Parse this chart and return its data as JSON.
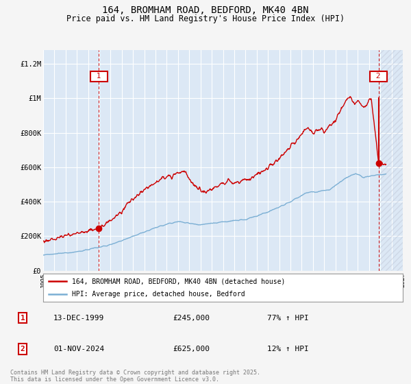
{
  "title_line1": "164, BROMHAM ROAD, BEDFORD, MK40 4BN",
  "title_line2": "Price paid vs. HM Land Registry's House Price Index (HPI)",
  "ylabel_ticks": [
    "£0",
    "£200K",
    "£400K",
    "£600K",
    "£800K",
    "£1M",
    "£1.2M"
  ],
  "ytick_values": [
    0,
    200000,
    400000,
    600000,
    800000,
    1000000,
    1200000
  ],
  "ylim": [
    0,
    1280000
  ],
  "xlim_start": 1995.0,
  "xlim_end": 2027.0,
  "xticks": [
    1995,
    1996,
    1997,
    1998,
    1999,
    2000,
    2001,
    2002,
    2003,
    2004,
    2005,
    2006,
    2007,
    2008,
    2009,
    2010,
    2011,
    2012,
    2013,
    2014,
    2015,
    2016,
    2017,
    2018,
    2019,
    2020,
    2021,
    2022,
    2023,
    2024,
    2025,
    2026,
    2027
  ],
  "red_line_color": "#cc0000",
  "blue_line_color": "#7bafd4",
  "background_color": "#f5f5f5",
  "plot_bg_color": "#dce8f5",
  "grid_color": "#ffffff",
  "hatch_color": "#c0c8d8",
  "marker1_x": 1999.95,
  "marker1_y": 245000,
  "marker2_x": 2024.84,
  "marker2_y": 625000,
  "legend_label_red": "164, BROMHAM ROAD, BEDFORD, MK40 4BN (detached house)",
  "legend_label_blue": "HPI: Average price, detached house, Bedford",
  "annotation1_date": "13-DEC-1999",
  "annotation1_price": "£245,000",
  "annotation1_hpi": "77% ↑ HPI",
  "annotation2_date": "01-NOV-2024",
  "annotation2_price": "£625,000",
  "annotation2_hpi": "12% ↑ HPI",
  "footer_text": "Contains HM Land Registry data © Crown copyright and database right 2025.\nThis data is licensed under the Open Government Licence v3.0."
}
